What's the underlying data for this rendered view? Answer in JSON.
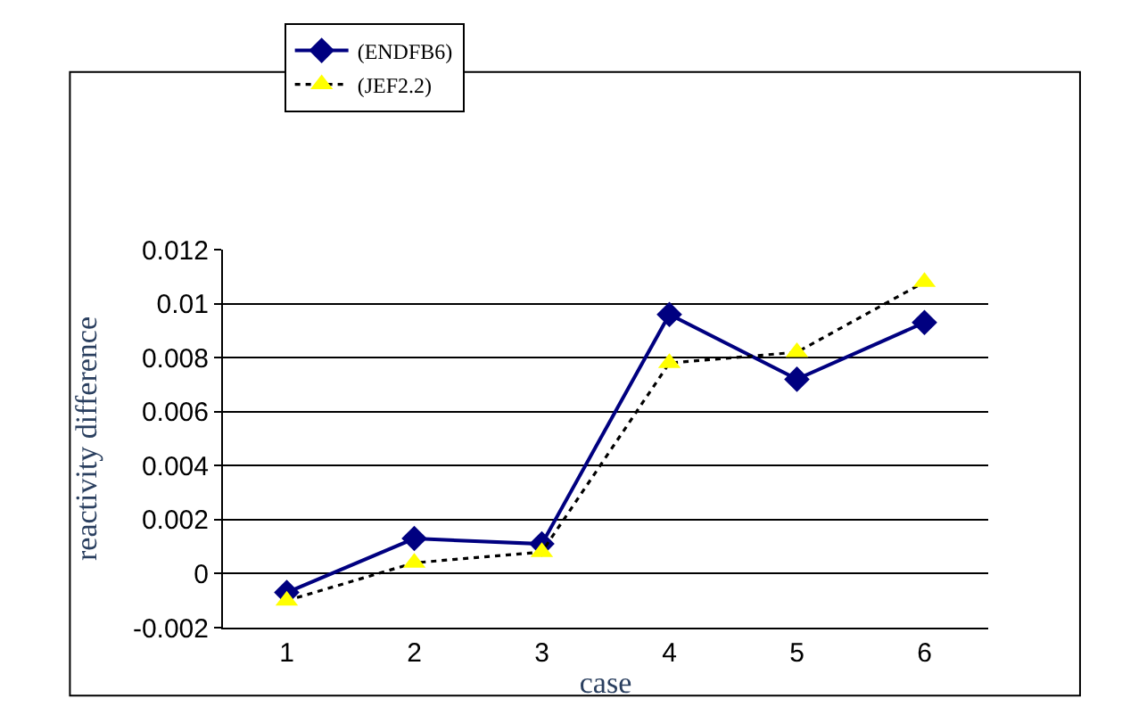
{
  "chart_data": {
    "type": "line",
    "xlabel": "case",
    "ylabel": "reactivity difference",
    "categories": [
      "1",
      "2",
      "3",
      "4",
      "5",
      "6"
    ],
    "series": [
      {
        "name": "(ENDFB6)",
        "color": "#000080",
        "values": [
          -0.0007,
          0.0013,
          0.0011,
          0.0096,
          0.0072,
          0.0093
        ],
        "marker": "diamond",
        "line_style": "solid"
      },
      {
        "name": "(JEF2.2)",
        "color": "#ffff00",
        "values": [
          -0.001,
          0.0004,
          0.0008,
          0.0078,
          0.0082,
          0.0108
        ],
        "marker": "triangle",
        "line_style": "dotted"
      }
    ],
    "ylim": [
      -0.002,
      0.012
    ],
    "yticks": [
      -0.002,
      0,
      0.002,
      0.004,
      0.006,
      0.008,
      0.01,
      0.012
    ],
    "grid": "y",
    "legend": "top"
  }
}
